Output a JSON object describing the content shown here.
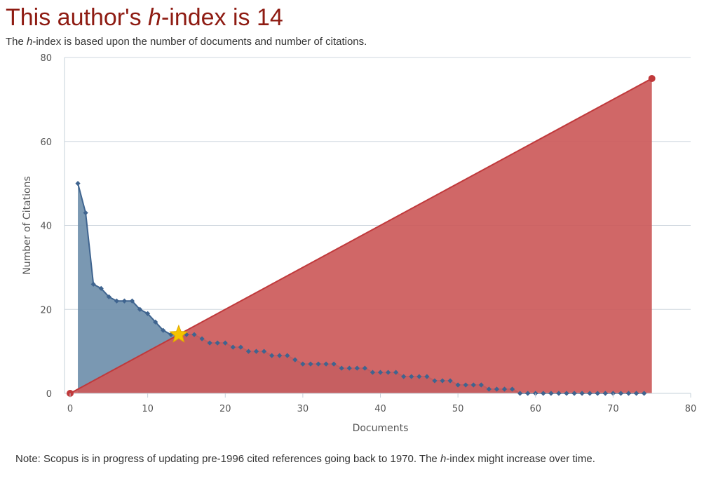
{
  "header": {
    "title_prefix": "This author's ",
    "title_h": "h",
    "title_suffix": "-index is 14",
    "subtitle_prefix": "The ",
    "subtitle_h": "h",
    "subtitle_suffix": "-index is based upon the number of documents and number of citations."
  },
  "footer": {
    "note_prefix": "Note: Scopus is in progress of updating pre-1996 cited references going back to 1970. The ",
    "note_h": "h",
    "note_suffix": "-index might increase over time."
  },
  "colors": {
    "title": "#8e1b12",
    "citations_line": "#3f648f",
    "citations_fill": "#6f8fab",
    "hline_line": "#c0393b",
    "hline_fill": "#cc5a5a",
    "star": "#f5c400",
    "grid": "#cfd7df"
  },
  "chart_data": {
    "type": "area",
    "xlabel": "Documents",
    "ylabel": "Number of Citations",
    "xlim": [
      0,
      80
    ],
    "ylim": [
      0,
      80
    ],
    "xticks": [
      0,
      10,
      20,
      30,
      40,
      50,
      60,
      70,
      80
    ],
    "yticks": [
      0,
      20,
      40,
      60,
      80
    ],
    "grid": "horizontal",
    "h_index": 14,
    "series": [
      {
        "type": "area",
        "marker": "diamond",
        "x": [
          1,
          2,
          3,
          4,
          5,
          6,
          7,
          8,
          9,
          10,
          11,
          12,
          13,
          14,
          15,
          16,
          17,
          18,
          19,
          20,
          21,
          22,
          23,
          24,
          25,
          26,
          27,
          28,
          29,
          30,
          31,
          32,
          33,
          34,
          35,
          36,
          37,
          38,
          39,
          40,
          41,
          42,
          43,
          44,
          45,
          46,
          47,
          48,
          49,
          50,
          51,
          52,
          53,
          54,
          55,
          56,
          57,
          58,
          59,
          60,
          61,
          62,
          63,
          64,
          65,
          66,
          67,
          68,
          69,
          70,
          71,
          72,
          73,
          74
        ],
        "values": [
          50,
          43,
          26,
          25,
          23,
          22,
          22,
          22,
          20,
          19,
          17,
          15,
          14,
          14,
          14,
          14,
          13,
          12,
          12,
          12,
          11,
          11,
          10,
          10,
          10,
          9,
          9,
          9,
          8,
          7,
          7,
          7,
          7,
          7,
          6,
          6,
          6,
          6,
          5,
          5,
          5,
          5,
          4,
          4,
          4,
          4,
          3,
          3,
          3,
          2,
          2,
          2,
          2,
          1,
          1,
          1,
          1,
          0,
          0,
          0,
          0,
          0,
          0,
          0,
          0,
          0,
          0,
          0,
          0,
          0,
          0,
          0,
          0,
          0
        ]
      },
      {
        "type": "area",
        "marker": "circle",
        "x": [
          0,
          75
        ],
        "values": [
          0,
          75
        ]
      }
    ],
    "annotations": [
      {
        "type": "star",
        "x": 14,
        "y": 14
      }
    ]
  }
}
